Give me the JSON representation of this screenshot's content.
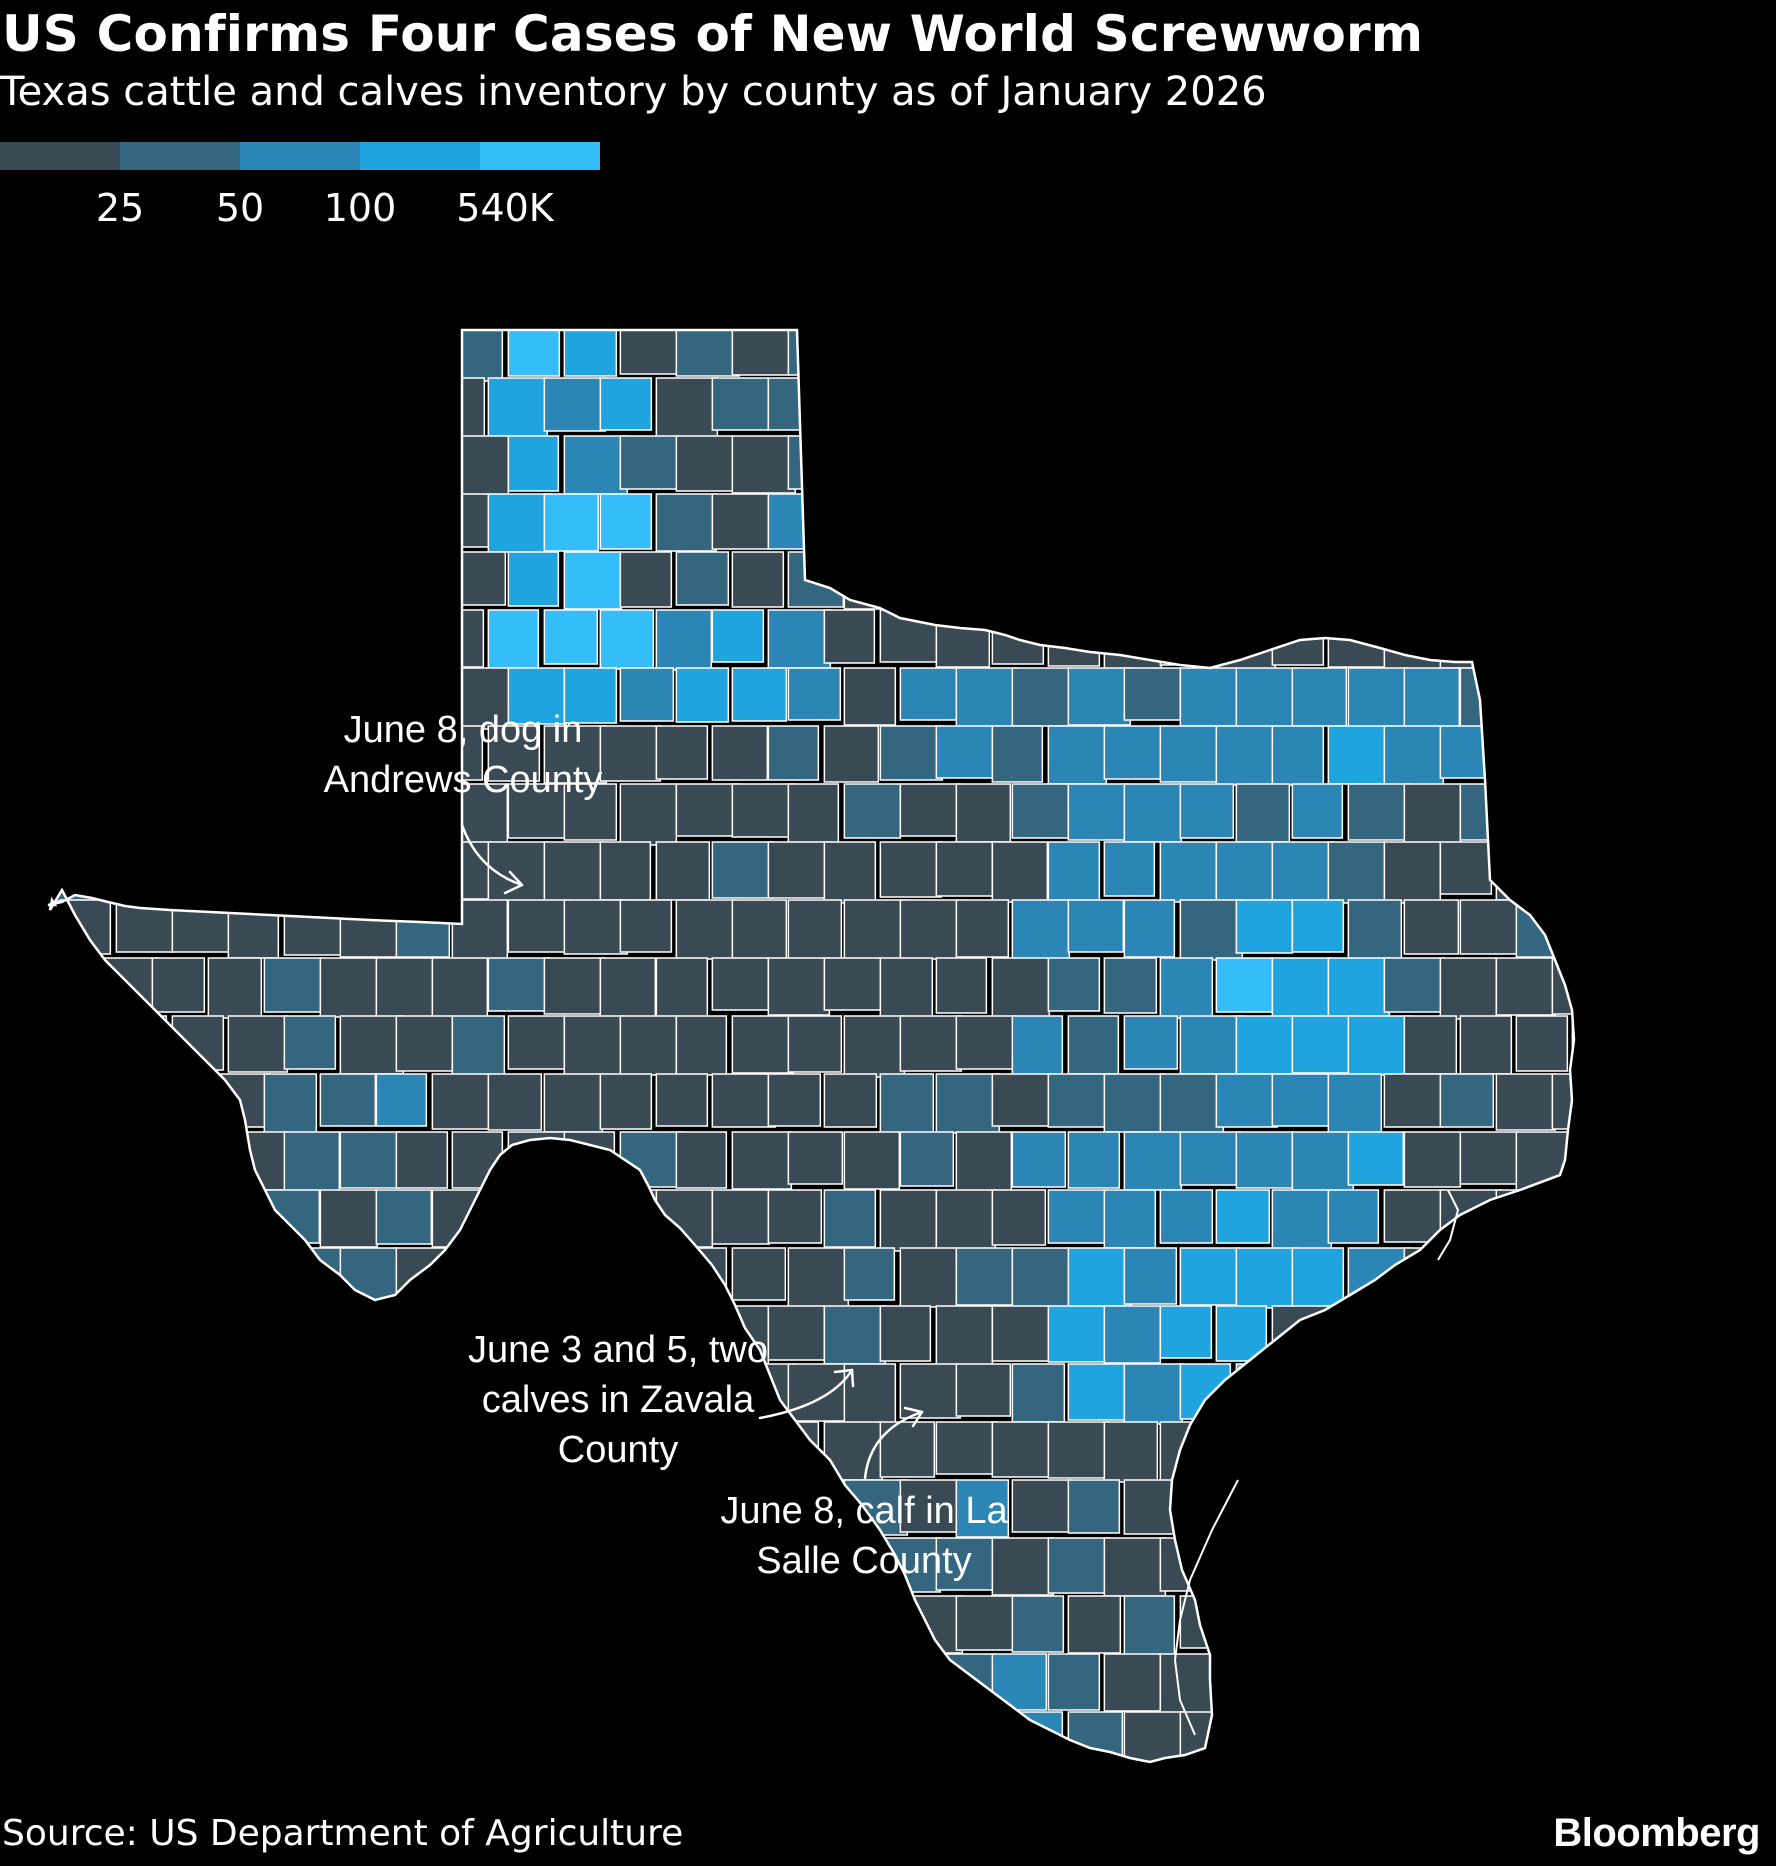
{
  "header": {
    "title": "US Confirms Four Cases of New World Screwworm",
    "subtitle": "Texas cattle and calves inventory by county as of January 2026"
  },
  "legend": {
    "colors": [
      "#3a4a55",
      "#34677f",
      "#2b86b6",
      "#20a4e0",
      "#34bdf8"
    ],
    "labels": [
      "25",
      "50",
      "100",
      "540K"
    ]
  },
  "annotations": {
    "andrews": "June 8, dog in Andrews County",
    "zavala": "June 3 and 5, two calves in Zavala County",
    "lasalle": "June 8, calf in La Salle County"
  },
  "footer": {
    "source": "Source: US Department of Agriculture",
    "brand": "Bloomberg"
  }
}
